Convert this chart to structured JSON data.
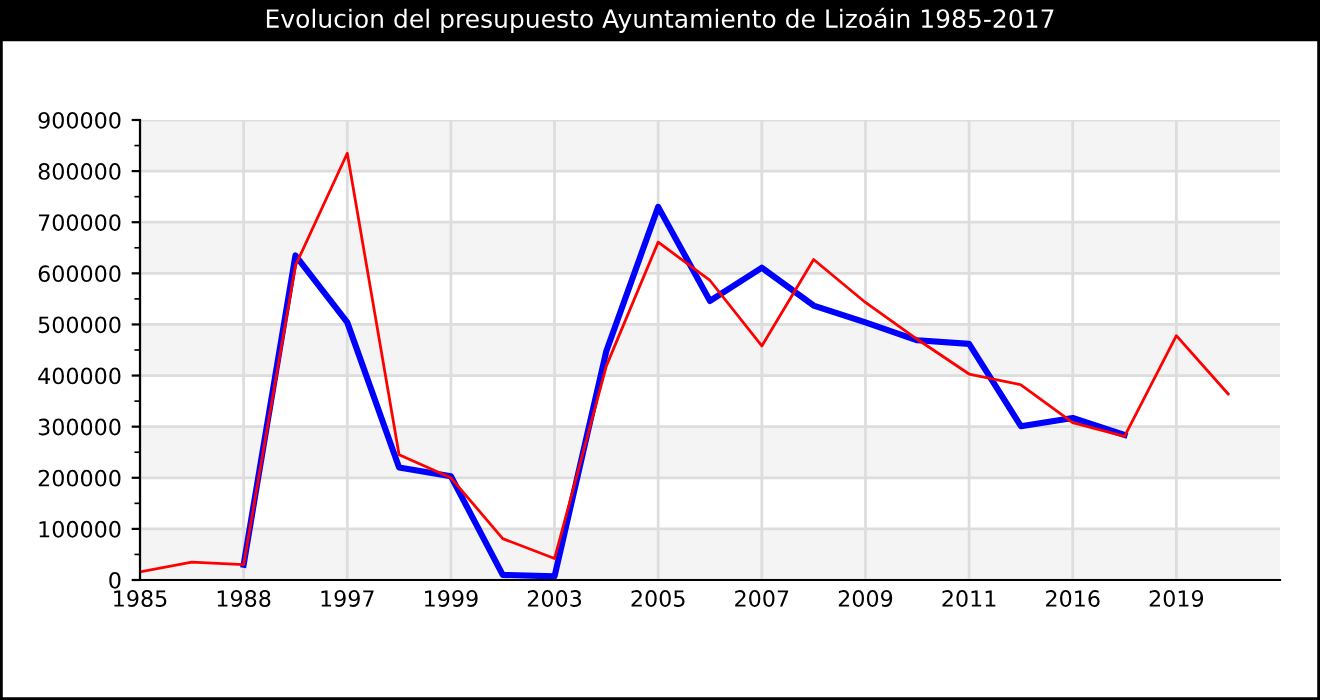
{
  "chart_data": {
    "type": "line",
    "title": "Evolucion del presupuesto Ayuntamiento de Lizoáin 1985-2017",
    "categories": [
      "1985",
      null,
      "1988",
      null,
      "1997",
      null,
      "1999",
      null,
      "2003",
      null,
      "2005",
      null,
      "2007",
      null,
      "2009",
      null,
      "2011",
      null,
      "2016",
      null,
      "2019",
      null,
      null
    ],
    "series": [
      {
        "color": "#0000ff",
        "values": [
          null,
          null,
          30000,
          635000,
          504000,
          220000,
          203000,
          10000,
          7000,
          448000,
          730000,
          546000,
          611000,
          537000,
          504000,
          469000,
          462000,
          301000,
          317000,
          284000,
          null,
          null,
          null
        ]
      },
      {
        "color": "#ff0000",
        "values": [
          16000,
          35000,
          30000,
          615000,
          835000,
          245000,
          200000,
          81000,
          42000,
          419000,
          661000,
          586000,
          458000,
          627000,
          543000,
          471000,
          403000,
          382000,
          308000,
          281000,
          478000,
          364000,
          null
        ]
      }
    ],
    "ylim": [
      0,
      900000
    ],
    "yticks": [
      0,
      100000,
      200000,
      300000,
      400000,
      500000,
      600000,
      700000,
      800000,
      900000
    ],
    "grid": true,
    "legend": false,
    "marker": "none",
    "line_style": "solid"
  }
}
